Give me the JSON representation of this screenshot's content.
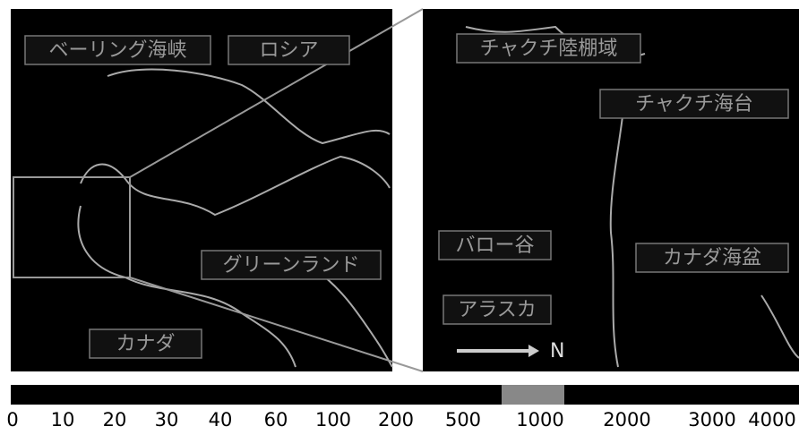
{
  "left_panel": {
    "labels": [
      "ベーリング海峡",
      "ロシア",
      "グリーンランド",
      "カナダ"
    ]
  },
  "right_panel": {
    "labels": [
      "チャクチ陸棚域",
      "チャクチ海台",
      "バロー谷",
      "カナダ海盆",
      "アラスカ"
    ],
    "north": "N"
  },
  "colorbar": {
    "ticks": [
      0,
      10,
      20,
      30,
      40,
      60,
      100,
      200,
      500,
      1000,
      2000,
      3000,
      4000
    ]
  }
}
